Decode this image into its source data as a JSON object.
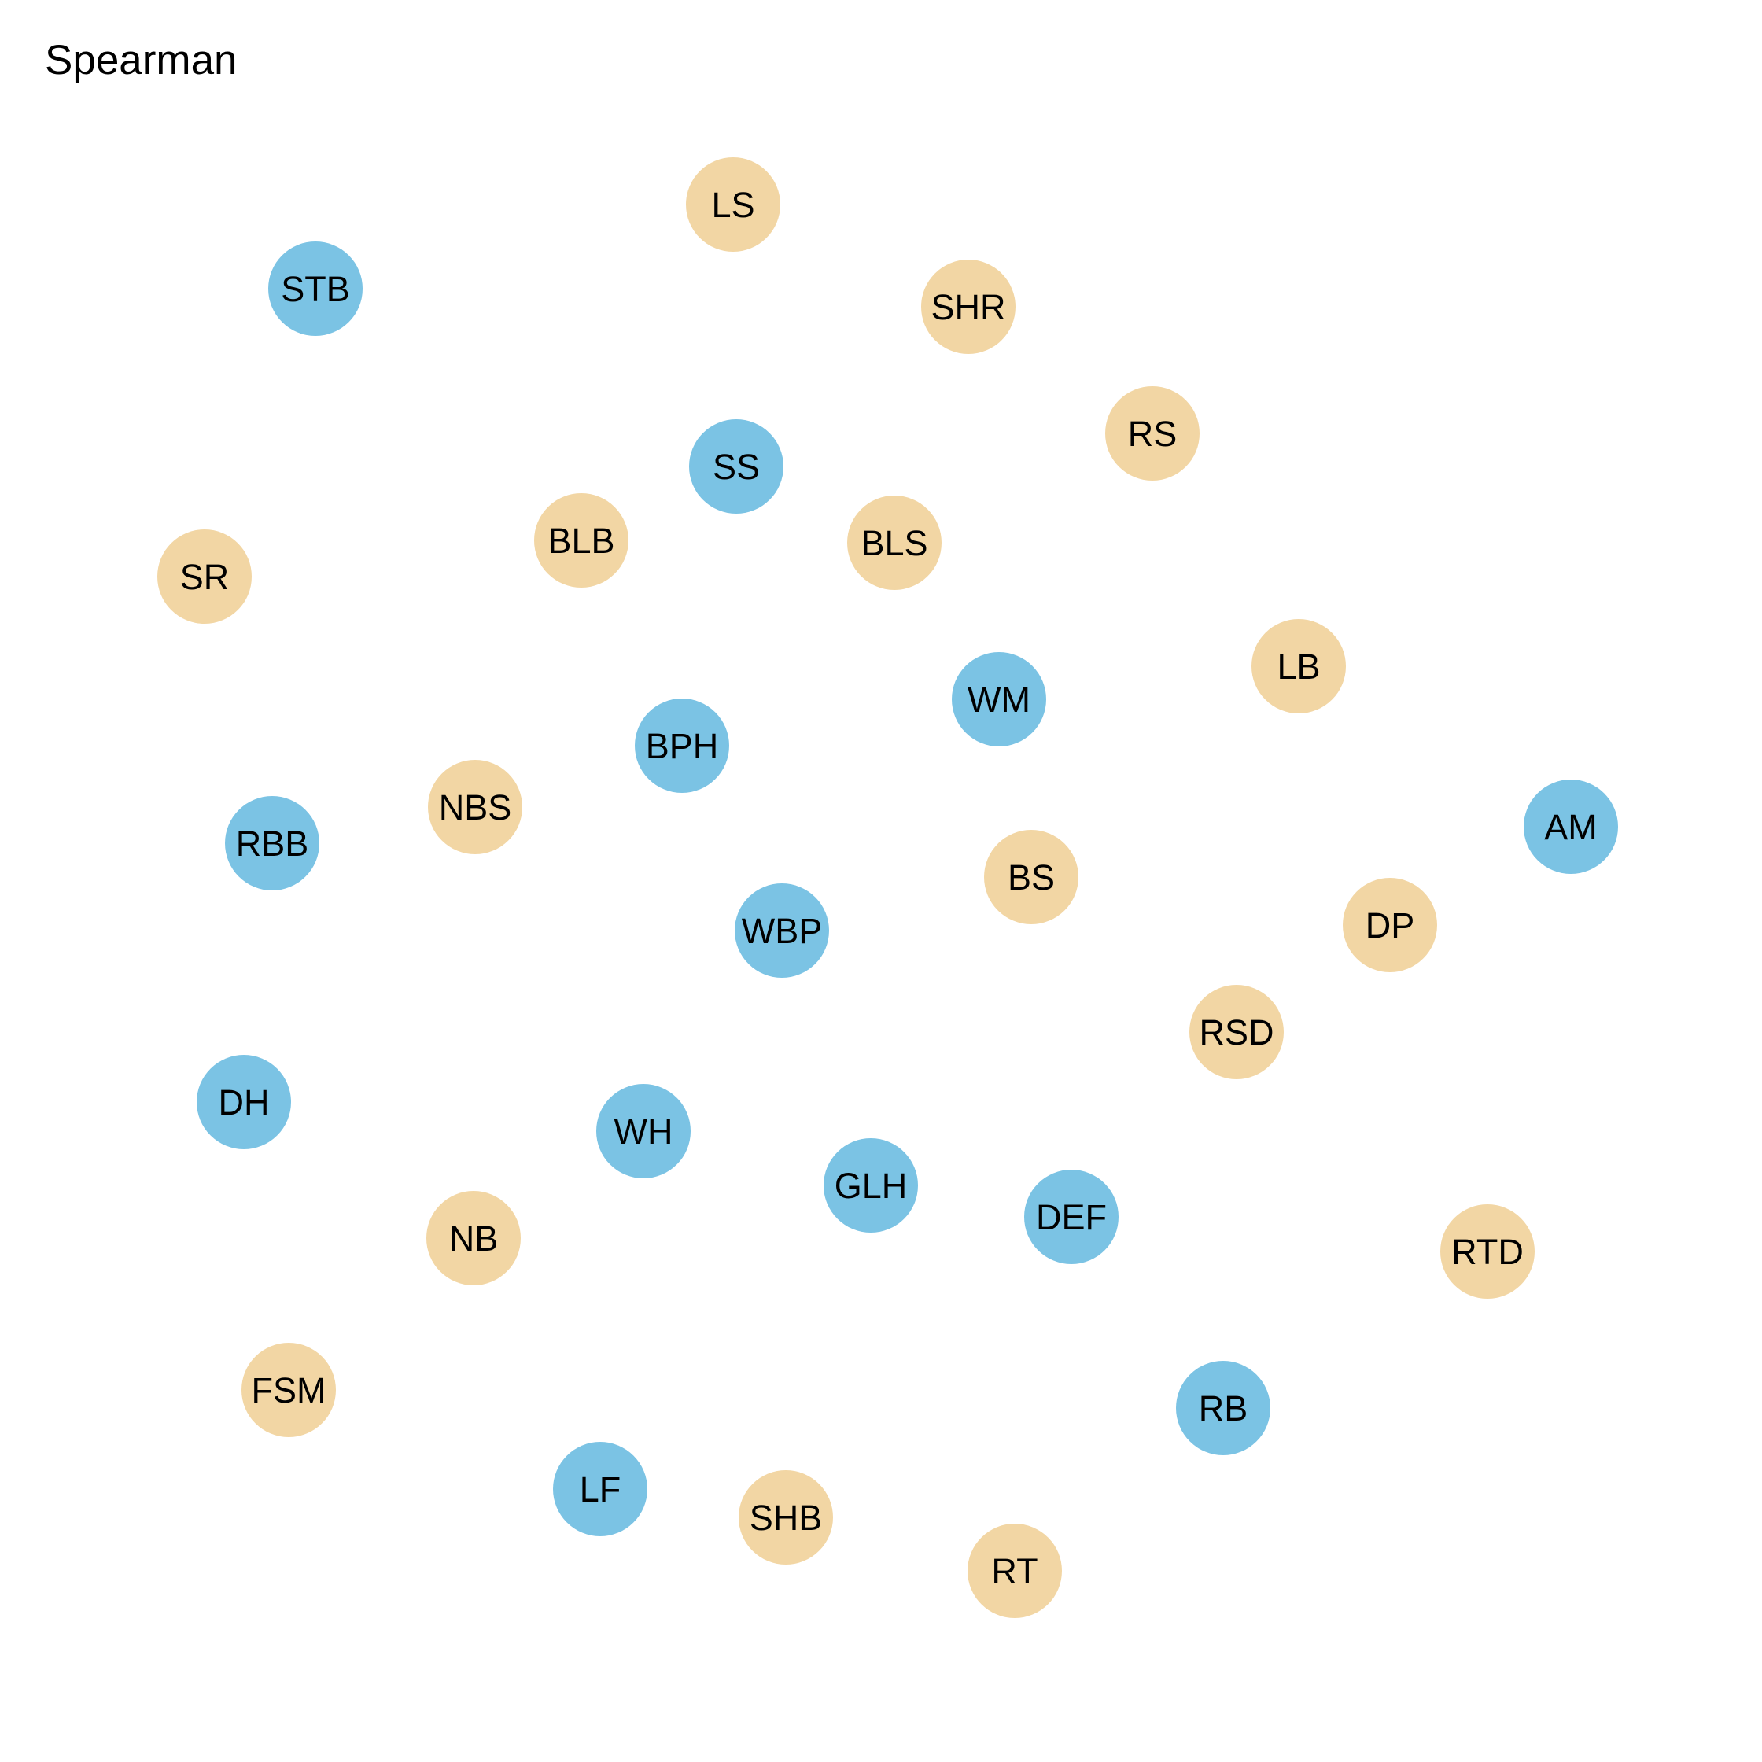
{
  "title": "Spearman",
  "colors": {
    "group_blue": "#7bc3e4",
    "group_tan": "#f2d6a4",
    "label": "#000000",
    "background": "#ffffff"
  },
  "nodes": [
    {
      "label": "LS",
      "group": "tan"
    },
    {
      "label": "STB",
      "group": "blue"
    },
    {
      "label": "SHR",
      "group": "tan"
    },
    {
      "label": "RS",
      "group": "tan"
    },
    {
      "label": "SS",
      "group": "blue"
    },
    {
      "label": "BLB",
      "group": "tan"
    },
    {
      "label": "BLS",
      "group": "tan"
    },
    {
      "label": "SR",
      "group": "tan"
    },
    {
      "label": "LB",
      "group": "tan"
    },
    {
      "label": "WM",
      "group": "blue"
    },
    {
      "label": "BPH",
      "group": "blue"
    },
    {
      "label": "NBS",
      "group": "tan"
    },
    {
      "label": "RBB",
      "group": "blue"
    },
    {
      "label": "AM",
      "group": "blue"
    },
    {
      "label": "BS",
      "group": "tan"
    },
    {
      "label": "DP",
      "group": "tan"
    },
    {
      "label": "WBP",
      "group": "blue"
    },
    {
      "label": "RSD",
      "group": "tan"
    },
    {
      "label": "DH",
      "group": "blue"
    },
    {
      "label": "WH",
      "group": "blue"
    },
    {
      "label": "GLH",
      "group": "blue"
    },
    {
      "label": "DEF",
      "group": "blue"
    },
    {
      "label": "NB",
      "group": "tan"
    },
    {
      "label": "RTD",
      "group": "tan"
    },
    {
      "label": "FSM",
      "group": "tan"
    },
    {
      "label": "RB",
      "group": "blue"
    },
    {
      "label": "LF",
      "group": "blue"
    },
    {
      "label": "SHB",
      "group": "tan"
    },
    {
      "label": "RT",
      "group": "tan"
    }
  ]
}
